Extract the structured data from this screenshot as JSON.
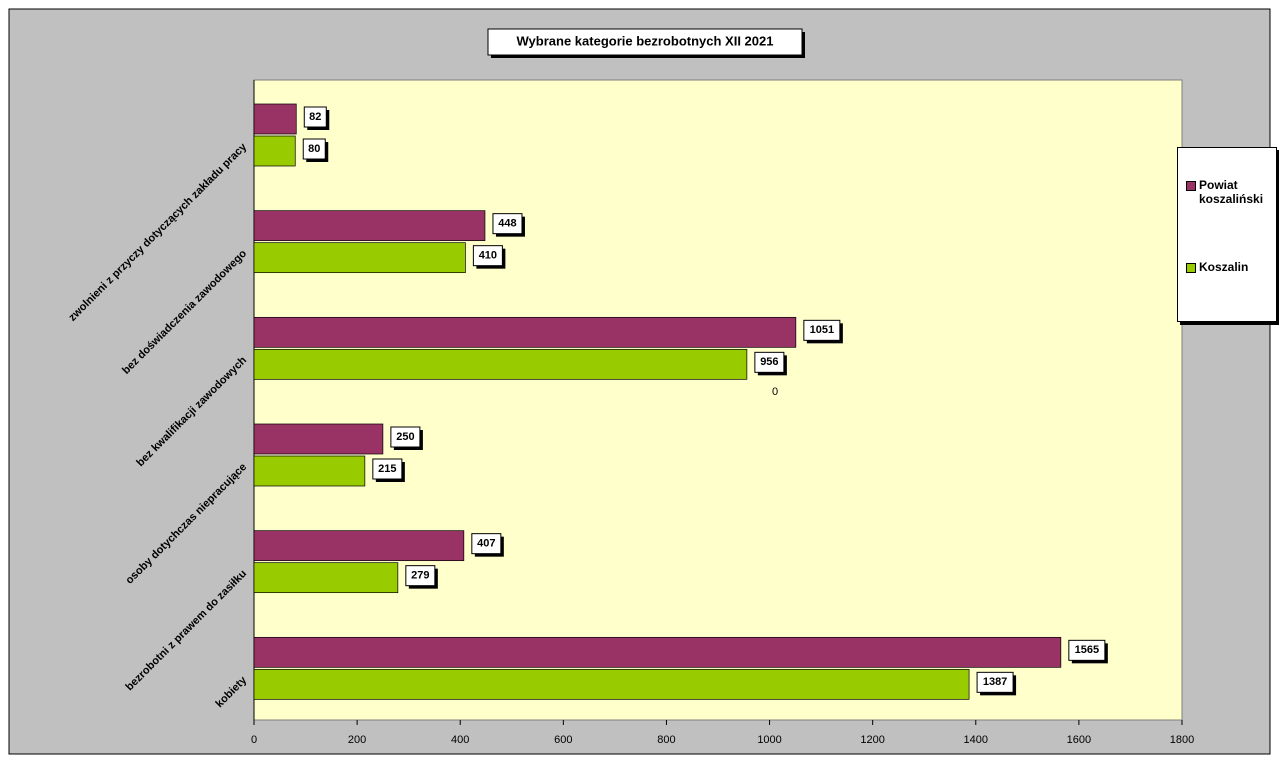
{
  "chart_data": {
    "type": "hbar",
    "title": "Wybrane kategorie bezrobotnych XII 2021",
    "categories": [
      "kobiety",
      "bezrobotni z prawem do zasiłku",
      "osoby dotychczas niepracujące",
      "bez kwalifikacji zawodowych",
      "bez doświadczenia zawodowego",
      "zwolnieni z przyczy dotyczących zakładu pracy"
    ],
    "series": [
      {
        "name": "Powiat koszaliński",
        "color": "#993366",
        "values": [
          1565,
          407,
          250,
          1051,
          448,
          82
        ]
      },
      {
        "name": "Koszalin",
        "color": "#99cc00",
        "values": [
          1387,
          279,
          215,
          956,
          410,
          80
        ]
      }
    ],
    "annotation": "0",
    "xlim": [
      0,
      1800
    ],
    "xticks": [
      0,
      200,
      400,
      600,
      800,
      1000,
      1200,
      1400,
      1600,
      1800
    ],
    "legend": "right"
  }
}
